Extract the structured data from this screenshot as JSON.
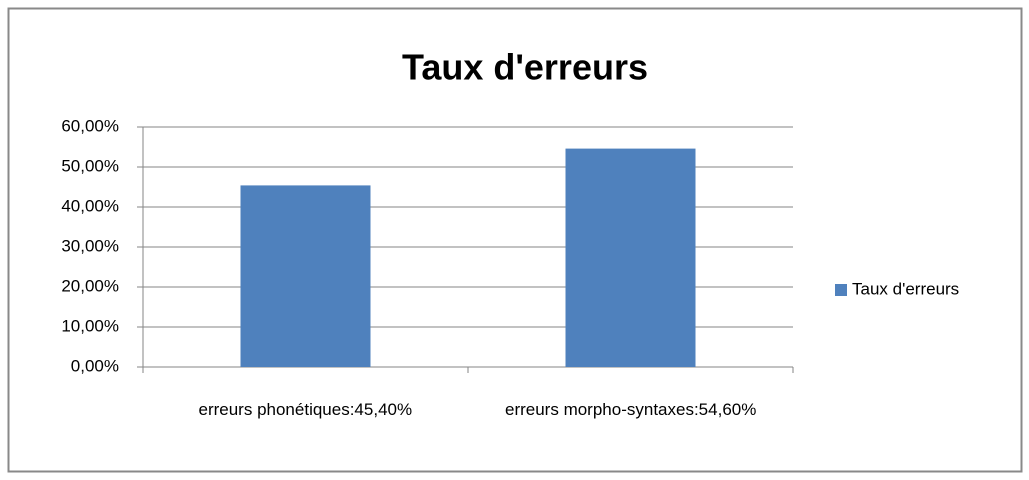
{
  "chart_data": {
    "type": "bar",
    "title": "Taux d'erreurs",
    "categories": [
      "erreurs phonétiques:45,40%",
      "erreurs morpho-syntaxes:54,60%"
    ],
    "series": [
      {
        "name": "Taux d'erreurs",
        "color": "#4f81bd",
        "values": [
          45.4,
          54.6
        ]
      }
    ],
    "ylim": [
      0,
      60
    ],
    "yticks": [
      {
        "value": 0,
        "label": "0,00%"
      },
      {
        "value": 10,
        "label": "10,00%"
      },
      {
        "value": 20,
        "label": "20,00%"
      },
      {
        "value": 30,
        "label": "30,00%"
      },
      {
        "value": 40,
        "label": "40,00%"
      },
      {
        "value": 50,
        "label": "50,00%"
      },
      {
        "value": 60,
        "label": "60,00%"
      }
    ],
    "grid": true,
    "legend": "right"
  }
}
